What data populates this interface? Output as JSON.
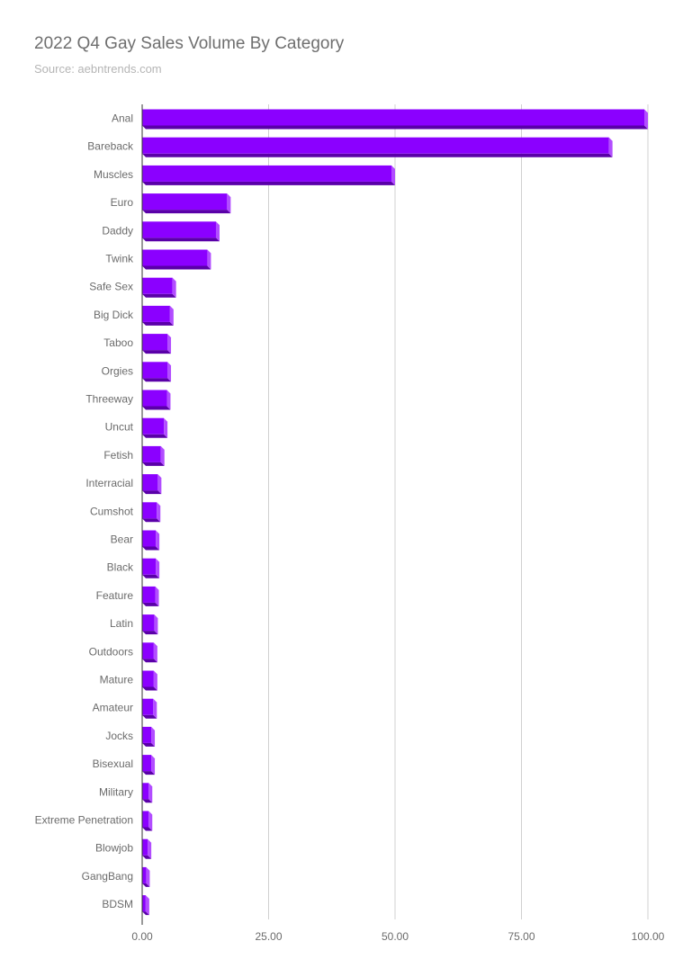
{
  "chart_data": {
    "type": "bar",
    "orientation": "horizontal",
    "title": "2022 Q4 Gay Sales Volume By Category",
    "subtitle": "Source: aebntrends.com",
    "xlabel": "",
    "ylabel": "",
    "xlim": [
      0,
      100
    ],
    "x_ticks": [
      "0.00",
      "25.00",
      "50.00",
      "75.00",
      "100.00"
    ],
    "grid": true,
    "legend": "none",
    "bar_color": "#8b00ff",
    "bar_side_color": "#b24dff",
    "bar_bottom_color": "#5a00a8",
    "categories": [
      "Anal",
      "Bareback",
      "Muscles",
      "Euro",
      "Daddy",
      "Twink",
      "Safe Sex",
      "Big Dick",
      "Taboo",
      "Orgies",
      "Threeway",
      "Uncut",
      "Fetish",
      "Interracial",
      "Cumshot",
      "Bear",
      "Black",
      "Feature",
      "Latin",
      "Outdoors",
      "Mature",
      "Amateur",
      "Jocks",
      "Bisexual",
      "Military",
      "Extreme Penetration",
      "Blowjob",
      "GangBang",
      "BDSM"
    ],
    "values": [
      100,
      93,
      50,
      17.5,
      15.3,
      13.6,
      6.7,
      6.2,
      5.7,
      5.7,
      5.6,
      5.0,
      4.4,
      3.8,
      3.6,
      3.4,
      3.4,
      3.3,
      3.1,
      3.0,
      3.0,
      2.9,
      2.5,
      2.5,
      2.0,
      2.0,
      1.8,
      1.5,
      1.4
    ]
  }
}
